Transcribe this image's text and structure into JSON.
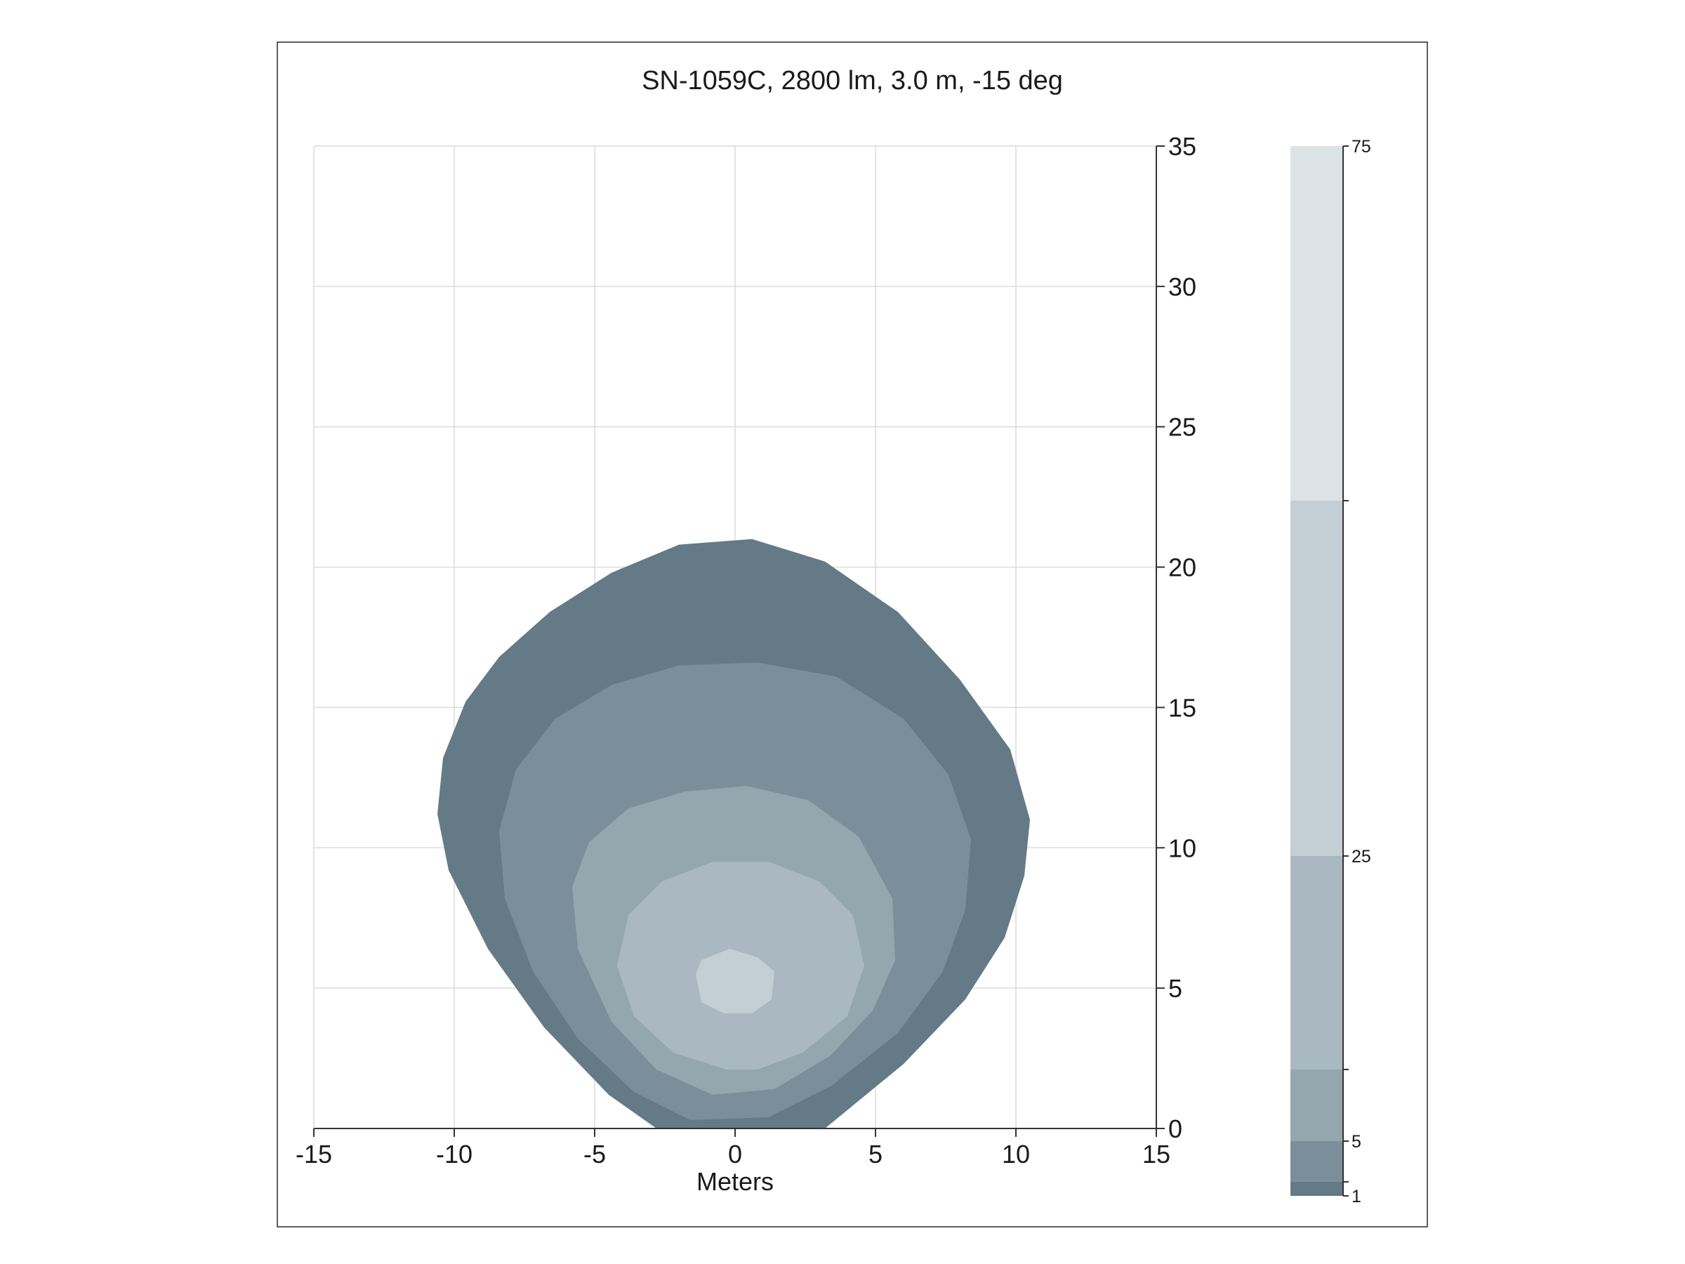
{
  "chart_data": {
    "type": "heatmap",
    "title": "SN-1059C, 2800 lm, 3.0 m, -15 deg",
    "xlabel": "Meters",
    "ylabel": "",
    "xlim": [
      -15,
      15
    ],
    "ylim": [
      0,
      35
    ],
    "x_ticks": [
      "-15",
      "-10",
      "-5",
      "0",
      "5",
      "10",
      "15"
    ],
    "y_ticks": [
      "0",
      "5",
      "10",
      "15",
      "20",
      "25",
      "30",
      "35"
    ],
    "grid": true,
    "y_axis_side": "right",
    "colors": [
      "#647a86",
      "#7b8f9b",
      "#94a6ae",
      "#aab9c1",
      "#c3ced5",
      "#dbe3e6"
    ],
    "colorbar": {
      "position": "right",
      "tick_labels": [
        "1",
        "5",
        "25",
        "75"
      ],
      "levels": [
        {
          "from": 1,
          "to": 2,
          "color": "#647a86"
        },
        {
          "from": 2,
          "to": 5,
          "color": "#7b8f9b"
        },
        {
          "from": 5,
          "to": 10,
          "color": "#94a6ae"
        },
        {
          "from": 10,
          "to": 25,
          "color": "#aab9c1"
        },
        {
          "from": 25,
          "to": 50,
          "color": "#c3ced5"
        },
        {
          "from": 50,
          "to": 75,
          "color": "#dbe3e6"
        }
      ]
    },
    "contours": [
      {
        "level_index": 0,
        "points": [
          [
            -2.8,
            0
          ],
          [
            -4.5,
            1.2
          ],
          [
            -6.8,
            3.6
          ],
          [
            -8.8,
            6.4
          ],
          [
            -10.2,
            9.2
          ],
          [
            -10.6,
            11.2
          ],
          [
            -10.4,
            13.2
          ],
          [
            -9.6,
            15.2
          ],
          [
            -8.4,
            16.8
          ],
          [
            -6.6,
            18.4
          ],
          [
            -4.4,
            19.8
          ],
          [
            -2,
            20.8
          ],
          [
            0.6,
            21.0
          ],
          [
            3.2,
            20.2
          ],
          [
            5.8,
            18.4
          ],
          [
            8,
            16
          ],
          [
            9.8,
            13.5
          ],
          [
            10.5,
            11
          ],
          [
            10.3,
            9
          ],
          [
            9.6,
            6.8
          ],
          [
            8.2,
            4.6
          ],
          [
            6,
            2.3
          ],
          [
            3.2,
            0
          ]
        ]
      },
      {
        "level_index": 1,
        "points": [
          [
            -1.6,
            0.3
          ],
          [
            -3.6,
            1.3
          ],
          [
            -5.6,
            3.2
          ],
          [
            -7.2,
            5.6
          ],
          [
            -8.2,
            8.2
          ],
          [
            -8.4,
            10.6
          ],
          [
            -7.8,
            12.8
          ],
          [
            -6.4,
            14.6
          ],
          [
            -4.4,
            15.8
          ],
          [
            -2,
            16.5
          ],
          [
            0.8,
            16.6
          ],
          [
            3.6,
            16.1
          ],
          [
            6,
            14.6
          ],
          [
            7.6,
            12.6
          ],
          [
            8.4,
            10.3
          ],
          [
            8.2,
            7.8
          ],
          [
            7.4,
            5.6
          ],
          [
            5.8,
            3.4
          ],
          [
            3.4,
            1.5
          ],
          [
            1.2,
            0.4
          ]
        ]
      },
      {
        "level_index": 2,
        "points": [
          [
            -0.8,
            1.2
          ],
          [
            -2.8,
            2.1
          ],
          [
            -4.4,
            3.8
          ],
          [
            -5.6,
            6.4
          ],
          [
            -5.8,
            8.6
          ],
          [
            -5.2,
            10.2
          ],
          [
            -3.8,
            11.4
          ],
          [
            -1.8,
            12
          ],
          [
            0.4,
            12.2
          ],
          [
            2.6,
            11.7
          ],
          [
            4.4,
            10.4
          ],
          [
            5.6,
            8.2
          ],
          [
            5.7,
            6
          ],
          [
            4.9,
            4.2
          ],
          [
            3.4,
            2.6
          ],
          [
            1.4,
            1.4
          ]
        ]
      },
      {
        "level_index": 3,
        "points": [
          [
            -0.3,
            2.1
          ],
          [
            -2.2,
            2.7
          ],
          [
            -3.6,
            4
          ],
          [
            -4.2,
            5.8
          ],
          [
            -3.8,
            7.6
          ],
          [
            -2.6,
            8.8
          ],
          [
            -0.8,
            9.5
          ],
          [
            1.2,
            9.5
          ],
          [
            3,
            8.8
          ],
          [
            4.2,
            7.6
          ],
          [
            4.6,
            5.8
          ],
          [
            4,
            4
          ],
          [
            2.4,
            2.7
          ],
          [
            0.8,
            2.1
          ]
        ]
      },
      {
        "level_index": 4,
        "points": [
          [
            -0.4,
            4.1
          ],
          [
            -1.2,
            4.5
          ],
          [
            -1.4,
            5.5
          ],
          [
            -1.2,
            6
          ],
          [
            -0.2,
            6.4
          ],
          [
            0.8,
            6.1
          ],
          [
            1.4,
            5.6
          ],
          [
            1.3,
            4.6
          ],
          [
            0.6,
            4.1
          ]
        ]
      }
    ]
  }
}
